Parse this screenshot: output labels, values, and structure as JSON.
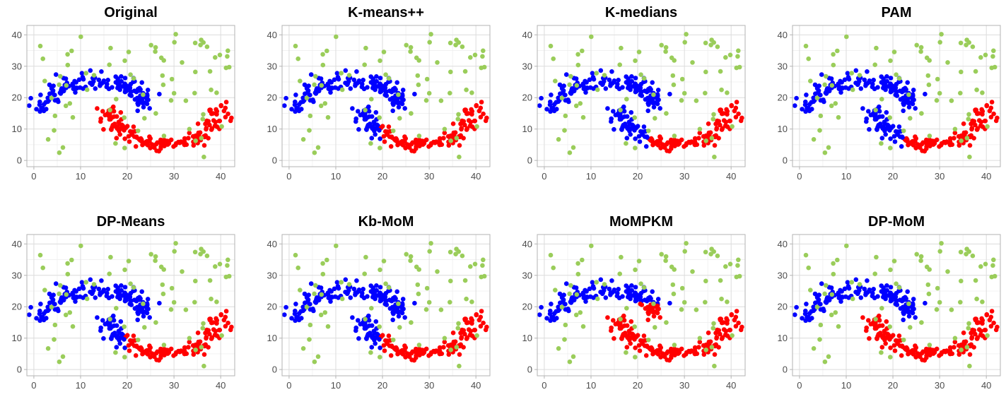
{
  "figure": {
    "point_colors": {
      "noise": "#9ACD5A",
      "cluster_blue": "#0000FF",
      "cluster_red": "#FF0000"
    }
  },
  "chart_data": [
    {
      "type": "scatter",
      "title": "Original",
      "xticks": [
        "0",
        "10",
        "20",
        "30",
        "40"
      ],
      "yticks": [
        "0",
        "10",
        "20",
        "30",
        "40"
      ],
      "xlim": [
        -1.5,
        43
      ],
      "ylim": [
        -2,
        43
      ],
      "grid": true,
      "legend": "none",
      "variant": "original"
    },
    {
      "type": "scatter",
      "title": "K-means++",
      "xticks": [
        "0",
        "10",
        "20",
        "30",
        "40"
      ],
      "yticks": [
        "0",
        "10",
        "20",
        "30",
        "40"
      ],
      "xlim": [
        -1.5,
        43
      ],
      "ylim": [
        -2,
        43
      ],
      "grid": true,
      "legend": "none",
      "variant": "kmeans"
    },
    {
      "type": "scatter",
      "title": "K-medians",
      "xticks": [
        "0",
        "10",
        "20",
        "30",
        "40"
      ],
      "yticks": [
        "0",
        "10",
        "20",
        "30",
        "40"
      ],
      "xlim": [
        -1.5,
        43
      ],
      "ylim": [
        -2,
        43
      ],
      "grid": true,
      "legend": "none",
      "variant": "kmedians"
    },
    {
      "type": "scatter",
      "title": "PAM",
      "xticks": [
        "0",
        "10",
        "20",
        "30",
        "40"
      ],
      "yticks": [
        "0",
        "10",
        "20",
        "30",
        "40"
      ],
      "xlim": [
        -1.5,
        43
      ],
      "ylim": [
        -2,
        43
      ],
      "grid": true,
      "legend": "none",
      "variant": "kmedians"
    },
    {
      "type": "scatter",
      "title": "DP-Means",
      "xticks": [
        "0",
        "10",
        "20",
        "30",
        "40"
      ],
      "yticks": [
        "0",
        "10",
        "20",
        "30",
        "40"
      ],
      "xlim": [
        -1.5,
        43
      ],
      "ylim": [
        -2,
        43
      ],
      "grid": true,
      "legend": "none",
      "variant": "kmeans"
    },
    {
      "type": "scatter",
      "title": "Kb-MoM",
      "xticks": [
        "0",
        "10",
        "20",
        "30",
        "40"
      ],
      "yticks": [
        "0",
        "10",
        "20",
        "30",
        "40"
      ],
      "xlim": [
        -1.5,
        43
      ],
      "ylim": [
        -2,
        43
      ],
      "grid": true,
      "legend": "none",
      "variant": "kmeans"
    },
    {
      "type": "scatter",
      "title": "MoMPKM",
      "xticks": [
        "0",
        "10",
        "20",
        "30",
        "40"
      ],
      "yticks": [
        "0",
        "10",
        "20",
        "30",
        "40"
      ],
      "xlim": [
        -1.5,
        43
      ],
      "ylim": [
        -2,
        43
      ],
      "grid": true,
      "legend": "none",
      "variant": "mompkm"
    },
    {
      "type": "scatter",
      "title": "DP-MoM",
      "xticks": [
        "0",
        "10",
        "20",
        "30",
        "40"
      ],
      "yticks": [
        "0",
        "10",
        "20",
        "30",
        "40"
      ],
      "xlim": [
        -1.5,
        43
      ],
      "ylim": [
        -2,
        43
      ],
      "grid": true,
      "legend": "none",
      "variant": "original"
    }
  ]
}
